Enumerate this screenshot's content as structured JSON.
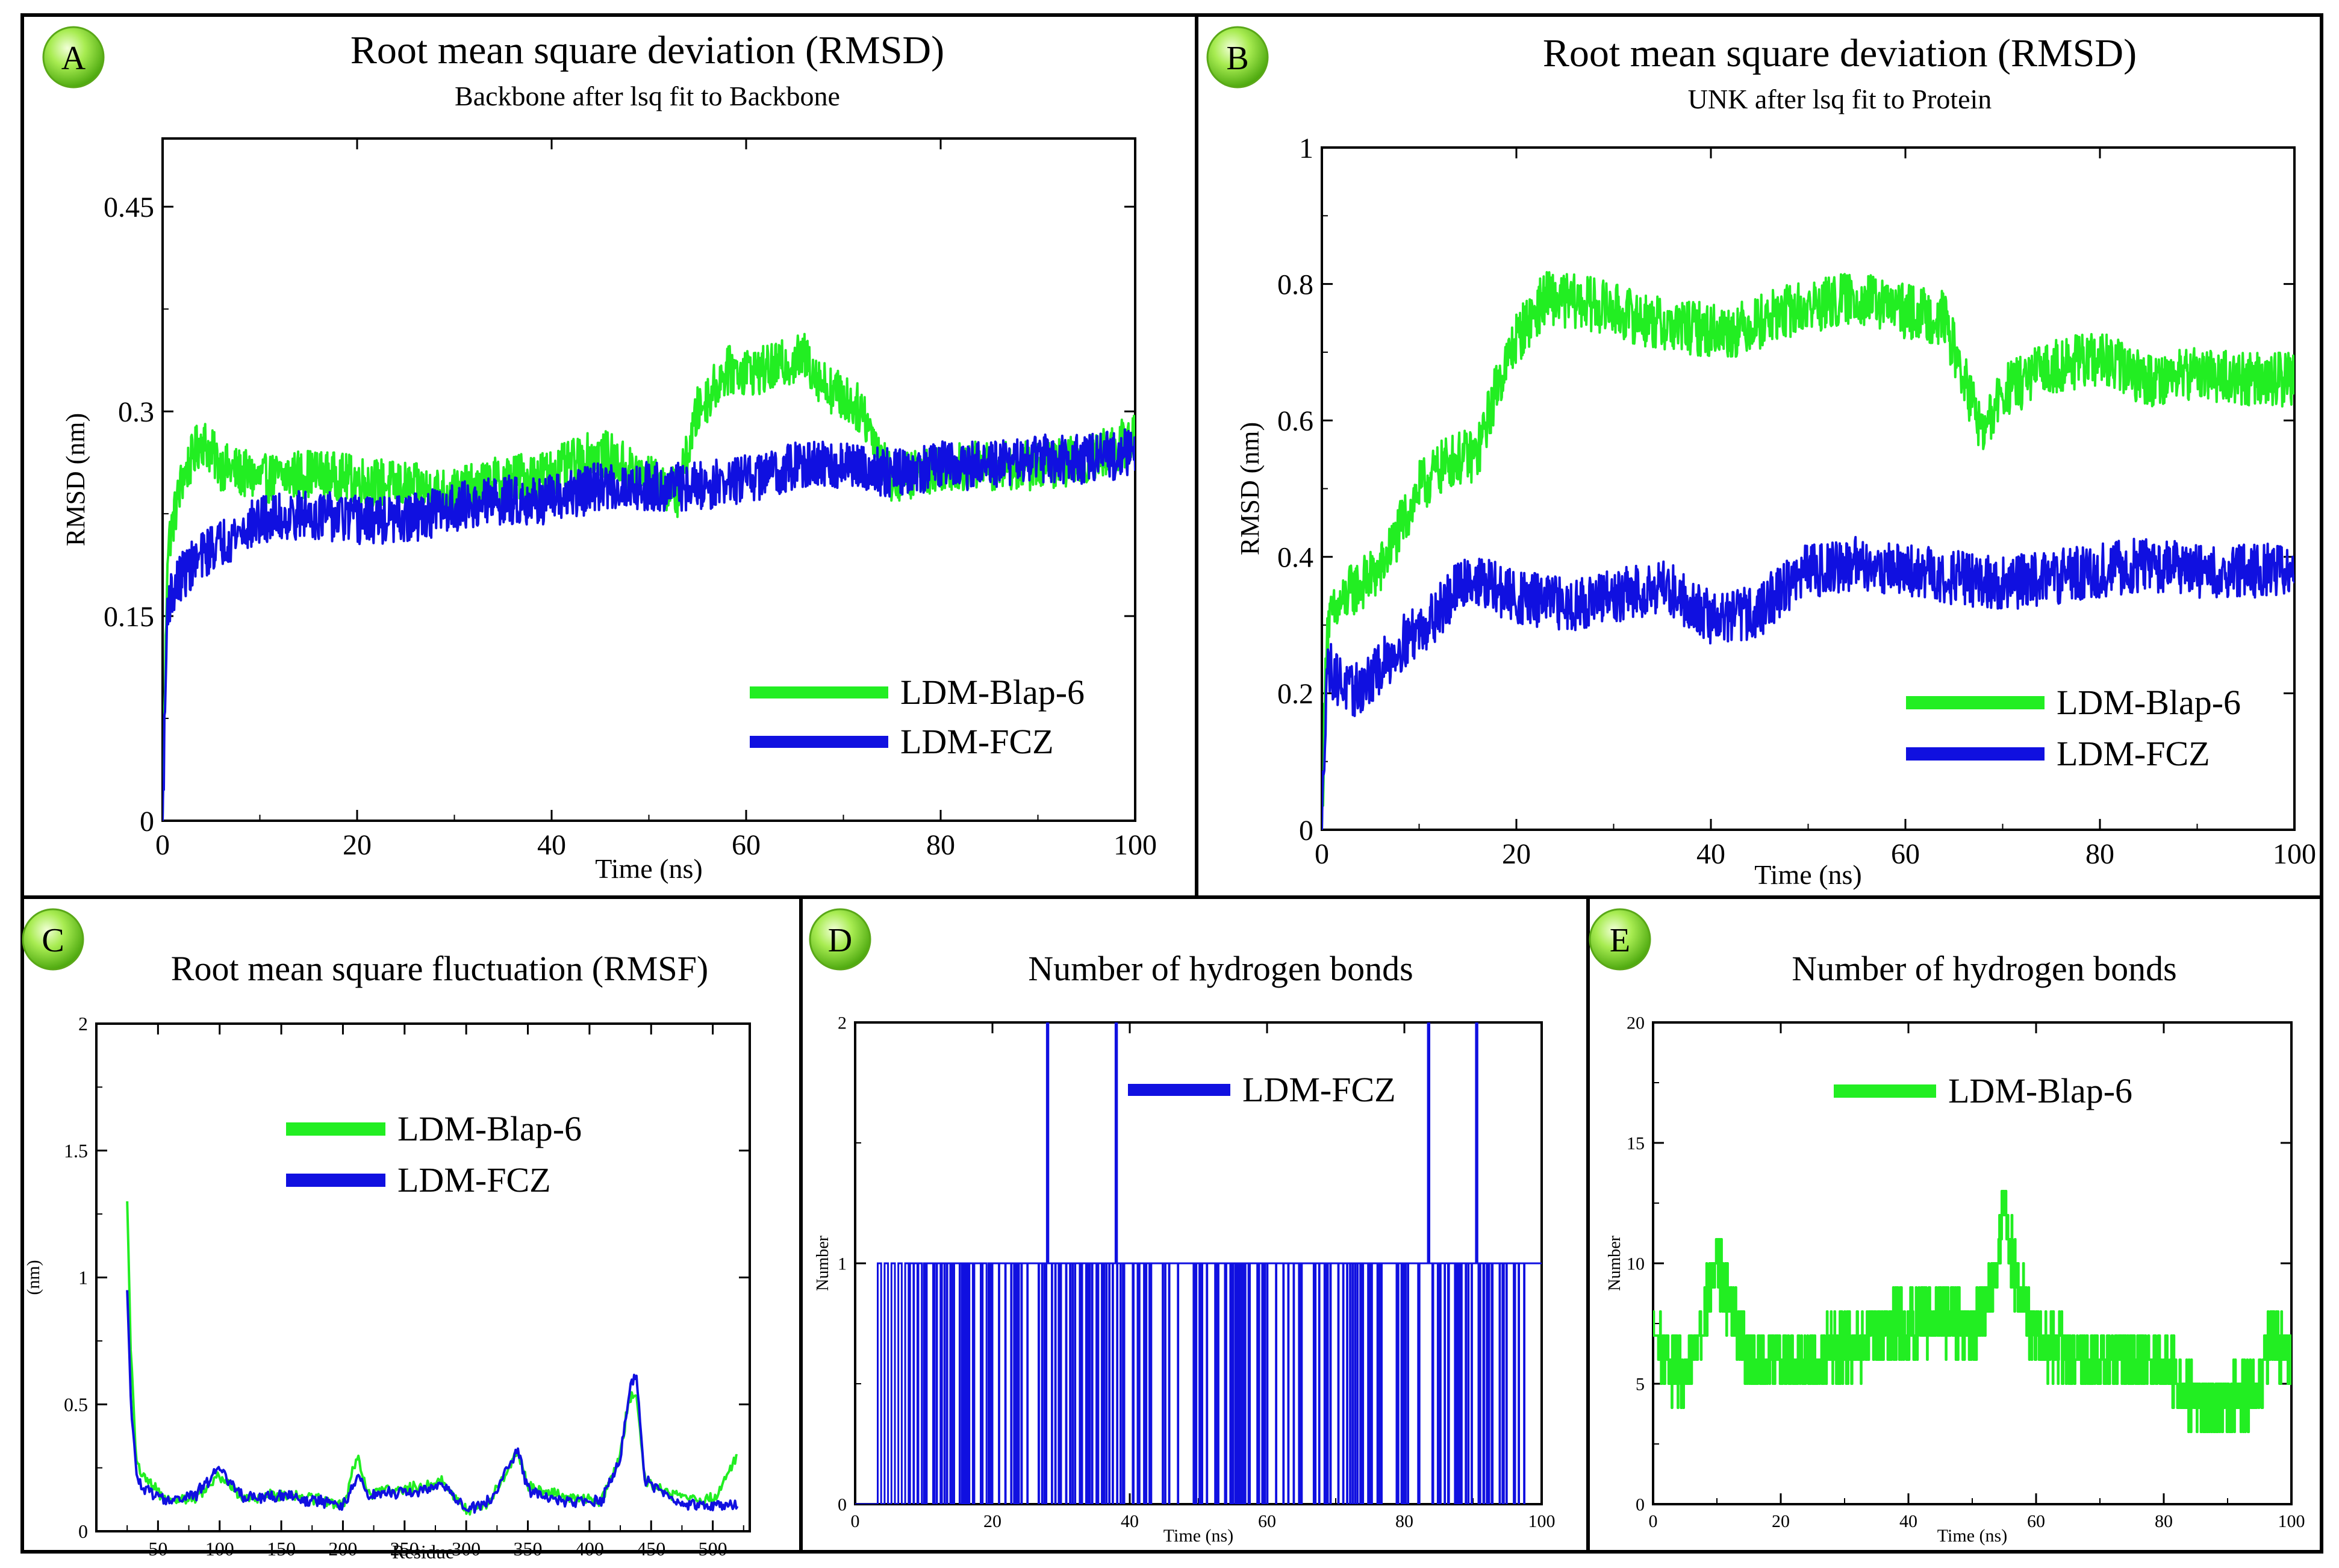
{
  "figure": {
    "description_source": "Molecular dynamics analysis figure with five panels",
    "colors": {
      "green": "#22ee22",
      "blue": "#1010e0",
      "badge": "#7ddc2a"
    }
  },
  "chart_data": [
    {
      "panel": "A",
      "type": "line",
      "title": "Root mean square deviation (RMSD)",
      "subtitle": "Backbone after lsq fit to Backbone",
      "xlabel": "Time (ns)",
      "ylabel": "RMSD (nm)",
      "xlim": [
        0,
        100
      ],
      "ylim": [
        0,
        0.5
      ],
      "xticks": [
        0,
        20,
        40,
        60,
        80,
        100
      ],
      "xtick_labels": [
        "0",
        "20",
        "40",
        "60",
        "80",
        "100"
      ],
      "yticks": [
        0,
        0.15,
        0.3,
        0.45
      ],
      "ytick_labels": [
        "0",
        "0.15",
        "0.3",
        "0.45"
      ],
      "legend": [
        "LDM-Blap-6",
        "LDM-FCZ"
      ],
      "legend_position": "bottom-right",
      "series": [
        {
          "name": "LDM-Blap-6",
          "color": "#22ee22",
          "x": [
            0,
            0.5,
            2,
            4,
            6,
            10,
            15,
            20,
            25,
            30,
            35,
            40,
            45,
            50,
            53,
            55,
            58,
            62,
            66,
            68,
            72,
            75,
            80,
            85,
            90,
            95,
            100
          ],
          "y": [
            0,
            0.2,
            0.25,
            0.28,
            0.26,
            0.25,
            0.255,
            0.25,
            0.245,
            0.24,
            0.25,
            0.255,
            0.27,
            0.25,
            0.24,
            0.3,
            0.33,
            0.33,
            0.34,
            0.32,
            0.3,
            0.25,
            0.26,
            0.26,
            0.26,
            0.265,
            0.28
          ]
        },
        {
          "name": "LDM-FCZ",
          "color": "#1010e0",
          "x": [
            0,
            0.5,
            2,
            5,
            10,
            15,
            20,
            25,
            30,
            35,
            40,
            45,
            50,
            55,
            60,
            65,
            70,
            75,
            80,
            85,
            90,
            95,
            100
          ],
          "y": [
            0,
            0.16,
            0.18,
            0.2,
            0.22,
            0.225,
            0.22,
            0.22,
            0.23,
            0.235,
            0.235,
            0.245,
            0.245,
            0.245,
            0.25,
            0.26,
            0.26,
            0.255,
            0.26,
            0.26,
            0.265,
            0.265,
            0.27
          ]
        }
      ]
    },
    {
      "panel": "B",
      "type": "line",
      "title": "Root mean square deviation (RMSD)",
      "subtitle": "UNK after lsq fit to Protein",
      "xlabel": "Time (ns)",
      "ylabel": "RMSD (nm)",
      "xlim": [
        0,
        100
      ],
      "ylim": [
        0,
        1
      ],
      "xticks": [
        0,
        20,
        40,
        60,
        80,
        100
      ],
      "xtick_labels": [
        "0",
        "20",
        "40",
        "60",
        "80",
        "100"
      ],
      "yticks": [
        0,
        0.2,
        0.4,
        0.6,
        0.8,
        1
      ],
      "ytick_labels": [
        "0",
        "0.2",
        "0.4",
        "0.6",
        "0.8",
        "1"
      ],
      "legend": [
        "LDM-Blap-6",
        "LDM-FCZ"
      ],
      "legend_position": "bottom-right",
      "series": [
        {
          "name": "LDM-Blap-6",
          "color": "#22ee22",
          "x": [
            0,
            0.5,
            3,
            6,
            8,
            10,
            13,
            16,
            18,
            20,
            23,
            28,
            35,
            42,
            48,
            55,
            60,
            64,
            66,
            68,
            70,
            75,
            80,
            85,
            90,
            95,
            100
          ],
          "y": [
            0,
            0.3,
            0.35,
            0.38,
            0.44,
            0.5,
            0.54,
            0.55,
            0.65,
            0.72,
            0.78,
            0.77,
            0.74,
            0.73,
            0.76,
            0.78,
            0.76,
            0.75,
            0.66,
            0.58,
            0.64,
            0.68,
            0.69,
            0.66,
            0.67,
            0.66,
            0.66
          ]
        },
        {
          "name": "LDM-FCZ",
          "color": "#1010e0",
          "x": [
            0,
            0.5,
            3,
            5,
            8,
            12,
            15,
            20,
            25,
            30,
            35,
            40,
            45,
            47,
            50,
            55,
            60,
            65,
            70,
            75,
            80,
            85,
            90,
            95,
            100
          ],
          "y": [
            0,
            0.24,
            0.2,
            0.22,
            0.27,
            0.32,
            0.37,
            0.34,
            0.33,
            0.34,
            0.36,
            0.31,
            0.32,
            0.35,
            0.38,
            0.39,
            0.38,
            0.37,
            0.36,
            0.37,
            0.38,
            0.39,
            0.38,
            0.38,
            0.38
          ]
        }
      ]
    },
    {
      "panel": "C",
      "type": "line",
      "title": "Root mean square fluctuation (RMSF)",
      "xlabel": "Residue",
      "ylabel": "(nm)",
      "xlim": [
        0,
        530
      ],
      "ylim": [
        0,
        2
      ],
      "xticks": [
        50,
        100,
        150,
        200,
        250,
        300,
        350,
        400,
        450,
        500
      ],
      "xtick_labels": [
        "50",
        "100",
        "150",
        "200",
        "250",
        "300",
        "350",
        "400",
        "450",
        "500"
      ],
      "yticks": [
        0,
        0.5,
        1,
        1.5,
        2
      ],
      "ytick_labels": [
        "0",
        "0.5",
        "1",
        "1.5",
        "2"
      ],
      "legend": [
        "LDM-Blap-6",
        "LDM-FCZ"
      ],
      "legend_position": "top-right",
      "series": [
        {
          "name": "LDM-Blap-6",
          "color": "#22ee22",
          "x": [
            25,
            28,
            32,
            36,
            40,
            50,
            60,
            80,
            100,
            120,
            150,
            180,
            200,
            212,
            220,
            260,
            280,
            300,
            320,
            342,
            350,
            380,
            410,
            425,
            432,
            438,
            445,
            470,
            500,
            520
          ],
          "y": [
            1.3,
            0.7,
            0.3,
            0.22,
            0.2,
            0.15,
            0.13,
            0.13,
            0.22,
            0.12,
            0.15,
            0.13,
            0.1,
            0.3,
            0.15,
            0.17,
            0.2,
            0.08,
            0.12,
            0.32,
            0.18,
            0.13,
            0.12,
            0.3,
            0.52,
            0.55,
            0.2,
            0.14,
            0.12,
            0.3
          ]
        },
        {
          "name": "LDM-FCZ",
          "color": "#1010e0",
          "x": [
            25,
            28,
            32,
            36,
            40,
            50,
            60,
            80,
            100,
            120,
            150,
            180,
            200,
            212,
            220,
            260,
            280,
            300,
            320,
            342,
            350,
            380,
            410,
            425,
            432,
            438,
            445,
            470,
            500,
            520
          ],
          "y": [
            0.95,
            0.5,
            0.25,
            0.18,
            0.17,
            0.14,
            0.12,
            0.14,
            0.25,
            0.13,
            0.14,
            0.12,
            0.1,
            0.22,
            0.14,
            0.16,
            0.18,
            0.09,
            0.12,
            0.33,
            0.16,
            0.12,
            0.12,
            0.28,
            0.55,
            0.62,
            0.2,
            0.12,
            0.1,
            0.1
          ]
        }
      ]
    },
    {
      "panel": "D",
      "type": "line",
      "title": "Number of hydrogen bonds",
      "xlabel": "Time (ns)",
      "ylabel": "Number",
      "xlim": [
        0,
        100
      ],
      "ylim": [
        0,
        2
      ],
      "xticks": [
        0,
        20,
        40,
        60,
        80,
        100
      ],
      "xtick_labels": [
        "0",
        "20",
        "40",
        "60",
        "80",
        "100"
      ],
      "yticks": [
        0,
        1,
        2
      ],
      "ytick_labels": [
        "0",
        "1",
        "2"
      ],
      "legend": [
        "LDM-FCZ"
      ],
      "legend_position": "top-right",
      "series": [
        {
          "name": "LDM-FCZ",
          "color": "#1010e0",
          "mostly_one_range": [
            10,
            100
          ],
          "spikes_to_two": [
            28,
            38,
            83.5,
            90.5
          ],
          "early_pulses": [
            3.5,
            4.5,
            5.5,
            6.5,
            7.5,
            8.2,
            8.8,
            9.4
          ]
        }
      ]
    },
    {
      "panel": "E",
      "type": "line",
      "title": "Number of hydrogen bonds",
      "xlabel": "Time (ns)",
      "ylabel": "Number",
      "xlim": [
        0,
        100
      ],
      "ylim": [
        0,
        20
      ],
      "xticks": [
        0,
        20,
        40,
        60,
        80,
        100
      ],
      "xtick_labels": [
        "0",
        "20",
        "40",
        "60",
        "80",
        "100"
      ],
      "yticks": [
        0,
        5,
        10,
        15,
        20
      ],
      "ytick_labels": [
        "0",
        "5",
        "10",
        "15",
        "20"
      ],
      "legend": [
        "LDM-Blap-6"
      ],
      "legend_position": "top-right",
      "series": [
        {
          "name": "LDM-Blap-6",
          "color": "#22ee22",
          "x": [
            0,
            5,
            9,
            10,
            15,
            20,
            25,
            30,
            35,
            40,
            45,
            50,
            53,
            55,
            57,
            60,
            65,
            70,
            75,
            80,
            85,
            90,
            95,
            97,
            100
          ],
          "y": [
            7,
            5,
            9,
            10,
            6,
            6,
            6,
            6.5,
            7,
            7.5,
            8,
            7,
            9,
            12,
            9,
            7,
            6,
            6,
            6,
            6,
            4,
            4,
            5,
            7,
            6
          ]
        }
      ]
    }
  ]
}
